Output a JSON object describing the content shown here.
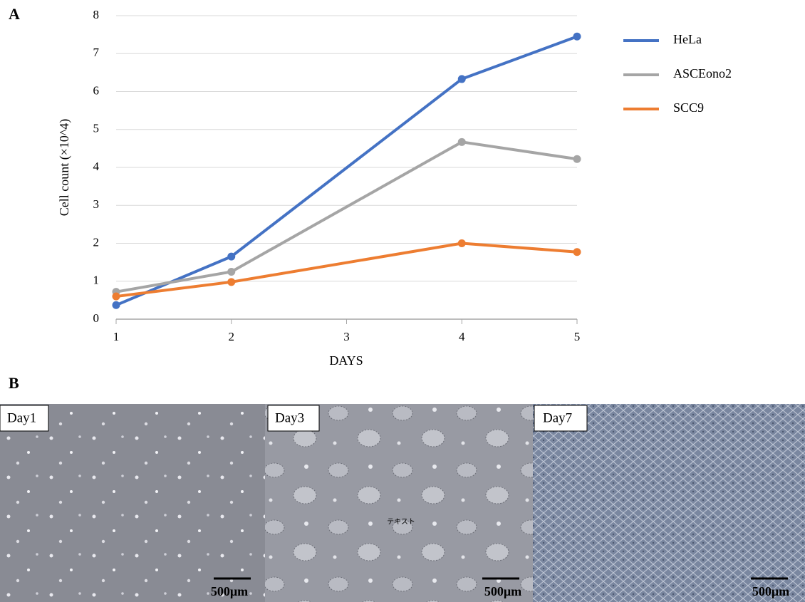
{
  "chart_data": {
    "type": "line",
    "x_label": "DAYS",
    "y_label": "Cell count (×10^4)",
    "x": [
      1,
      2,
      4,
      5
    ],
    "series": [
      {
        "name": "HeLa",
        "color": "#4472c4",
        "values": [
          0.37,
          1.65,
          6.33,
          7.45
        ]
      },
      {
        "name": "ASCEono2",
        "color": "#a5a5a5",
        "values": [
          0.72,
          1.25,
          4.67,
          4.22
        ]
      },
      {
        "name": "SCC9",
        "color": "#ed7d31",
        "values": [
          0.6,
          0.98,
          2.0,
          1.77
        ]
      }
    ],
    "xlim": [
      1,
      5
    ],
    "xticks": [
      1,
      2,
      3,
      4,
      5
    ],
    "ylim": [
      0,
      8
    ],
    "yticks": [
      0,
      1,
      2,
      3,
      4,
      5,
      6,
      7,
      8
    ],
    "grid": true,
    "legend": "right"
  },
  "panel_labels": [
    "A",
    "B"
  ],
  "micrographs": [
    {
      "label": "Day1",
      "scale_bar": "500µm"
    },
    {
      "label": "Day3",
      "scale_bar": "500µm",
      "overlay_text": "テキスト"
    },
    {
      "label": "Day7",
      "scale_bar": "500µm"
    }
  ]
}
